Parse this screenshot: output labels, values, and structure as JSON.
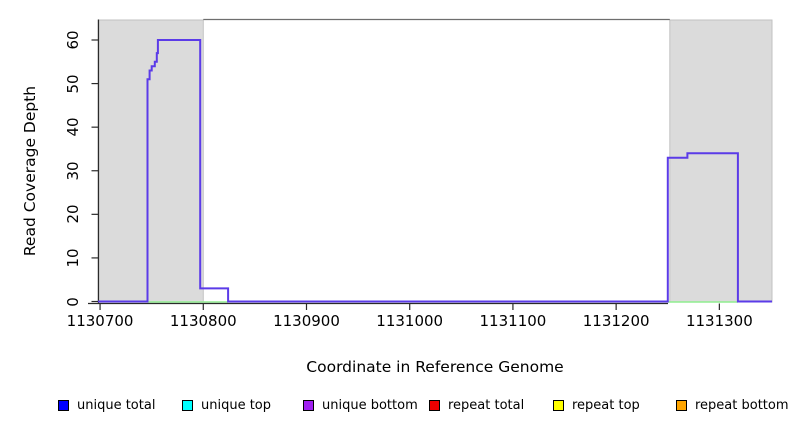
{
  "chart_data": {
    "type": "line",
    "title": "",
    "xlabel": "Coordinate in Reference Genome",
    "ylabel": "Read Coverage Depth",
    "xlim": [
      1130698,
      1131351
    ],
    "ylim": [
      0,
      64.6
    ],
    "grid": false,
    "x_ticks": [
      1130700,
      1130800,
      1130900,
      1131000,
      1131100,
      1131200,
      1131300
    ],
    "y_ticks": [
      0,
      10,
      20,
      30,
      40,
      50,
      60
    ],
    "shaded_regions": [
      {
        "x1": 1130698,
        "x2": 1130800
      },
      {
        "x1": 1131252,
        "x2": 1131351
      }
    ],
    "annotation_segments": [
      {
        "x1": 1130746,
        "x2": 1130824,
        "y": 0
      },
      {
        "x1": 1131250,
        "x2": 1131318,
        "y": 0
      }
    ],
    "series": [
      {
        "name": "coverage",
        "color": "#5B3BE8",
        "points": [
          [
            1130698,
            0
          ],
          [
            1130746,
            0
          ],
          [
            1130746,
            51
          ],
          [
            1130748,
            51
          ],
          [
            1130748,
            53
          ],
          [
            1130750,
            53
          ],
          [
            1130750,
            54
          ],
          [
            1130753,
            54
          ],
          [
            1130753,
            55
          ],
          [
            1130755,
            55
          ],
          [
            1130755,
            57
          ],
          [
            1130756,
            57
          ],
          [
            1130756,
            60
          ],
          [
            1130797,
            60
          ],
          [
            1130797,
            3
          ],
          [
            1130824,
            3
          ],
          [
            1130824,
            0
          ],
          [
            1131250,
            0
          ],
          [
            1131250,
            33
          ],
          [
            1131269,
            33
          ],
          [
            1131269,
            34
          ],
          [
            1131318,
            34
          ],
          [
            1131318,
            0
          ],
          [
            1131351,
            0
          ]
        ]
      }
    ],
    "legend_position": "bottom",
    "legend": [
      {
        "label": "unique total",
        "color": "#0000FF"
      },
      {
        "label": "unique top",
        "color": "#00FFFF"
      },
      {
        "label": "unique bottom",
        "color": "#A020F0"
      },
      {
        "label": "repeat total",
        "color": "#EE0000"
      },
      {
        "label": "repeat top",
        "color": "#FFFF00"
      },
      {
        "label": "repeat bottom",
        "color": "#FFA500"
      }
    ]
  },
  "colors": {
    "shaded_region_fill": "#DBDBDB",
    "shaded_region_border": "#C2C2C2",
    "annotation_line": "#90EE90",
    "axis": "#2A2A2A",
    "plot_box_top": "#6E6E6E",
    "background": "#FFFFFF"
  }
}
